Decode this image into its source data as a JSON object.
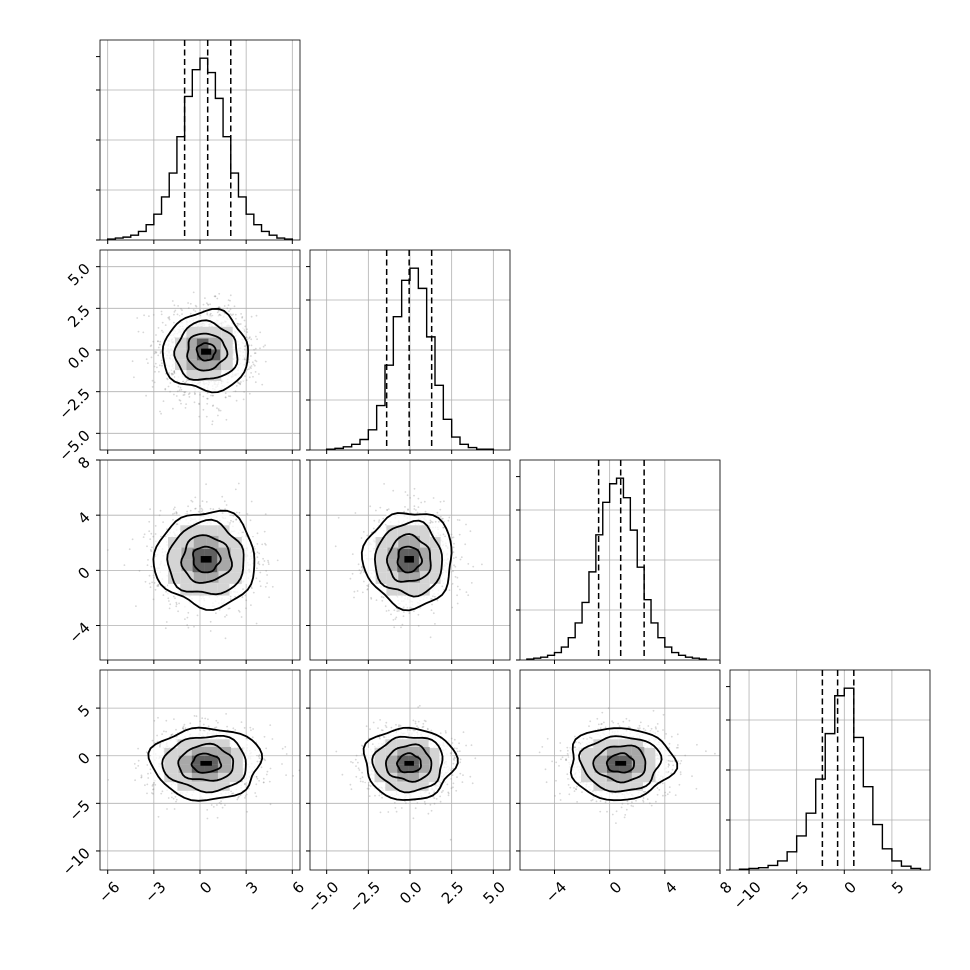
{
  "chart_data": {
    "type": "corner",
    "grid": true,
    "parameters": [
      {
        "range": [
          -6.5,
          6.5
        ],
        "ticks": [
          -6,
          -3,
          0,
          3,
          6
        ],
        "tick_labels": [
          "−6",
          "−3",
          "0",
          "3",
          "6"
        ],
        "quantiles": [
          -1.0,
          0.5,
          2.0
        ],
        "histogram": {
          "bin_edges": [
            -6.0,
            -5.5,
            -5.0,
            -4.5,
            -4.0,
            -3.5,
            -3.0,
            -2.5,
            -2.0,
            -1.5,
            -1.0,
            -0.5,
            0.0,
            0.5,
            1.0,
            1.5,
            2.0,
            2.5,
            3.0,
            3.5,
            4.0,
            4.5,
            5.0,
            5.5,
            6.0
          ],
          "counts": [
            1,
            2,
            3,
            5,
            9,
            16,
            27,
            45,
            70,
            108,
            150,
            178,
            190,
            175,
            148,
            108,
            70,
            45,
            27,
            16,
            9,
            5,
            2,
            1
          ]
        }
      },
      {
        "range": [
          -6.0,
          6.0
        ],
        "ticks": [
          -5.0,
          -2.5,
          0.0,
          2.5,
          5.0
        ],
        "tick_labels": [
          "−5.0",
          "−2.5",
          "0.0",
          "2.5",
          "5.0"
        ],
        "quantiles": [
          -1.4,
          -0.05,
          1.3
        ],
        "histogram": {
          "bin_edges": [
            -5.0,
            -4.5,
            -4.0,
            -3.5,
            -3.0,
            -2.5,
            -2.0,
            -1.5,
            -1.0,
            -0.5,
            0.0,
            0.5,
            1.0,
            1.5,
            2.0,
            2.5,
            3.0,
            3.5,
            4.0,
            4.5,
            5.0
          ],
          "counts": [
            1,
            2,
            4,
            7,
            13,
            25,
            55,
            105,
            165,
            210,
            225,
            200,
            140,
            80,
            38,
            16,
            7,
            3,
            1,
            1
          ]
        }
      },
      {
        "range": [
          -6.5,
          8.0
        ],
        "ticks": [
          -4,
          0,
          4,
          8
        ],
        "tick_labels": [
          "−4",
          "0",
          "4",
          "8"
        ],
        "quantiles": [
          -0.8,
          0.8,
          2.5
        ],
        "histogram": {
          "bin_edges": [
            -6.0,
            -5.5,
            -5.0,
            -4.5,
            -4.0,
            -3.5,
            -3.0,
            -2.5,
            -2.0,
            -1.5,
            -1.0,
            -0.5,
            0.0,
            0.5,
            1.0,
            1.5,
            2.0,
            2.5,
            3.0,
            3.5,
            4.0,
            4.5,
            5.0,
            5.5,
            6.0,
            6.5,
            7.0
          ],
          "counts": [
            1,
            2,
            3,
            5,
            8,
            14,
            24,
            40,
            62,
            95,
            135,
            170,
            190,
            196,
            175,
            140,
            100,
            65,
            40,
            24,
            14,
            8,
            5,
            3,
            2,
            1
          ]
        }
      },
      {
        "range": [
          -12.0,
          9.0
        ],
        "ticks": [
          -10,
          -5,
          0,
          5
        ],
        "tick_labels": [
          "−10",
          "−5",
          "0",
          "5"
        ],
        "quantiles": [
          -2.3,
          -0.7,
          1.0
        ],
        "histogram": {
          "bin_edges": [
            -11,
            -10,
            -9,
            -8,
            -7,
            -6,
            -5,
            -4,
            -3,
            -2,
            -1,
            0,
            1,
            2,
            3,
            4,
            5,
            6,
            7,
            8
          ],
          "counts": [
            1,
            2,
            3,
            6,
            12,
            24,
            45,
            75,
            120,
            180,
            230,
            240,
            175,
            110,
            60,
            28,
            12,
            5,
            2
          ]
        }
      }
    ],
    "pairs": [
      {
        "x": 0,
        "y": 1,
        "center": [
          0.4,
          -0.1
        ],
        "sigma": [
          1.5,
          1.3
        ],
        "contour_radii": [
          0.4,
          0.85,
          1.35,
          1.85
        ],
        "n_scatter": 1500
      },
      {
        "x": 0,
        "y": 2,
        "center": [
          0.4,
          0.8
        ],
        "sigma": [
          1.6,
          1.7
        ],
        "contour_radii": [
          0.55,
          1.0,
          1.55,
          2.05
        ],
        "n_scatter": 1500
      },
      {
        "x": 1,
        "y": 2,
        "center": [
          -0.05,
          0.8
        ],
        "sigma": [
          1.3,
          1.7
        ],
        "contour_radii": [
          0.55,
          1.0,
          1.55,
          2.05
        ],
        "n_scatter": 1500
      },
      {
        "x": 0,
        "y": 3,
        "center": [
          0.4,
          -0.8
        ],
        "sigma": [
          1.7,
          1.8
        ],
        "contour_radii": [
          0.55,
          1.05,
          1.6,
          2.1
        ],
        "n_scatter": 1500
      },
      {
        "x": 1,
        "y": 3,
        "center": [
          -0.05,
          -0.8
        ],
        "sigma": [
          1.3,
          1.8
        ],
        "contour_radii": [
          0.55,
          1.05,
          1.6,
          2.1
        ],
        "n_scatter": 1500
      },
      {
        "x": 2,
        "y": 3,
        "center": [
          0.8,
          -0.8
        ],
        "sigma": [
          1.8,
          1.8
        ],
        "contour_radii": [
          0.55,
          1.05,
          1.6,
          2.1
        ],
        "n_scatter": 1500
      }
    ]
  }
}
